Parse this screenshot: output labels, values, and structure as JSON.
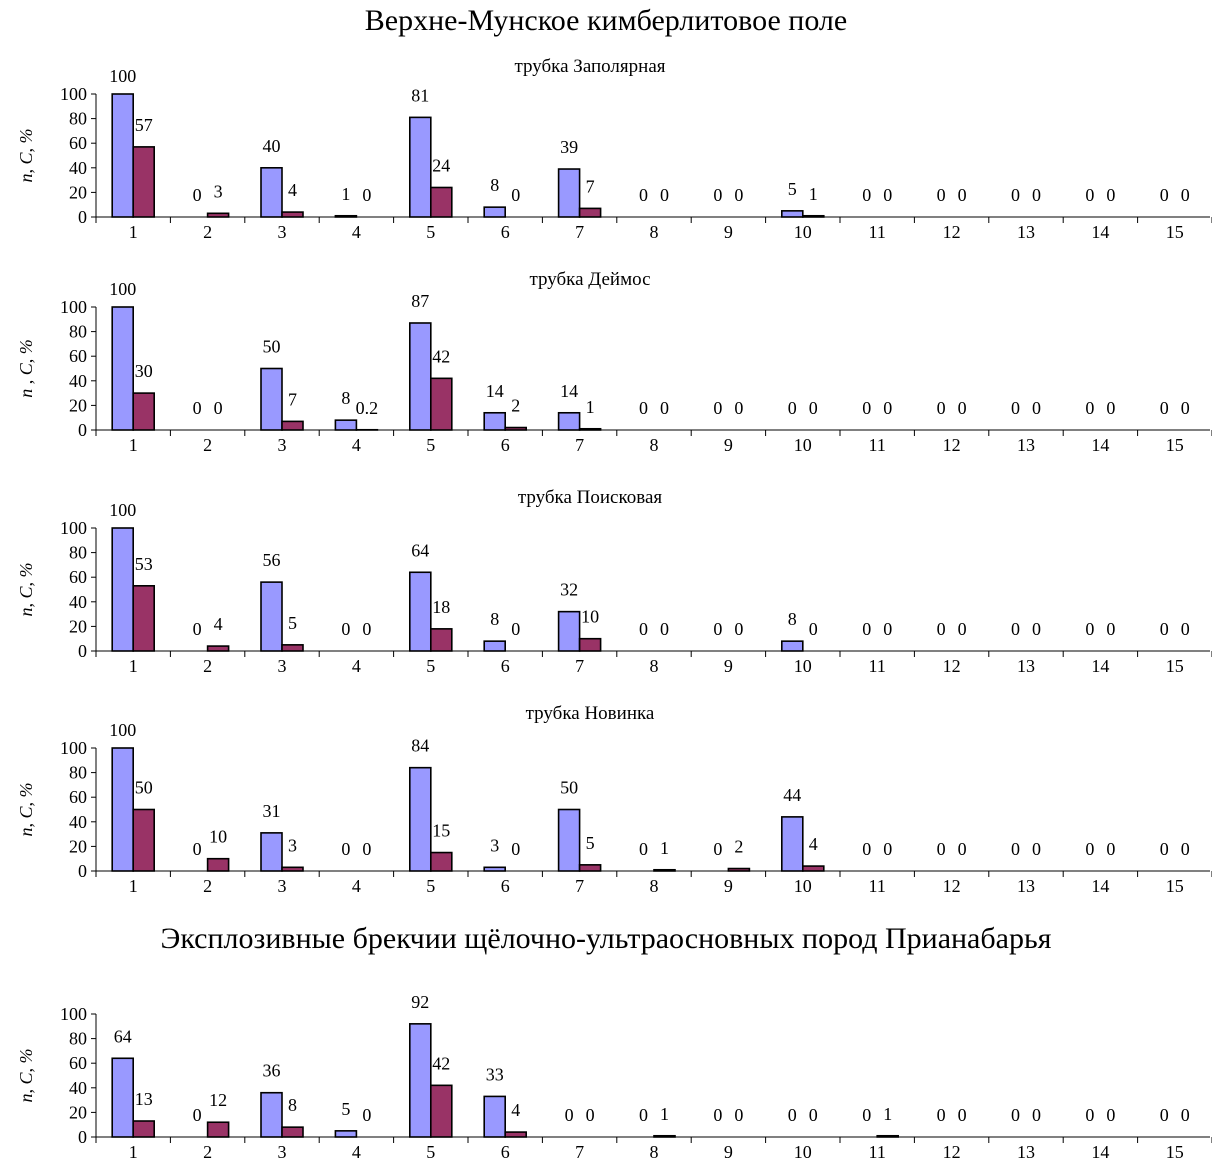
{
  "titles": {
    "main": "Верхне-Мунское кимберлитовое поле",
    "secondary": "Эксплозивные брекчии щёлочно-ультраосновных пород Прианабарья"
  },
  "colors": {
    "series_n": "#9999ff",
    "series_c": "#993366",
    "outline": "#000000"
  },
  "chart_data": [
    {
      "type": "bar",
      "title": "трубка Заполярная",
      "ylabel": "n, C, %",
      "ylim": [
        0,
        100
      ],
      "yticks": [
        0,
        20,
        40,
        60,
        80,
        100
      ],
      "categories": [
        "1",
        "2",
        "3",
        "4",
        "5",
        "6",
        "7",
        "8",
        "9",
        "10",
        "11",
        "12",
        "13",
        "14",
        "15"
      ],
      "series": [
        {
          "values": [
            100,
            0,
            40,
            1,
            81,
            8,
            39,
            0,
            0,
            5,
            0,
            0,
            0,
            0,
            0
          ]
        },
        {
          "values": [
            57,
            3,
            4,
            0,
            24,
            0,
            7,
            0,
            0,
            1,
            0,
            0,
            0,
            0,
            0
          ]
        }
      ]
    },
    {
      "type": "bar",
      "title": "трубка Деймос",
      "ylabel": "n , C, %",
      "ylim": [
        0,
        100
      ],
      "yticks": [
        0,
        20,
        40,
        60,
        80,
        100
      ],
      "categories": [
        "1",
        "2",
        "3",
        "4",
        "5",
        "6",
        "7",
        "8",
        "9",
        "10",
        "11",
        "12",
        "13",
        "14",
        "15"
      ],
      "series": [
        {
          "values": [
            100,
            0,
            50,
            8,
            87,
            14,
            14,
            0,
            0,
            0,
            0,
            0,
            0,
            0,
            0
          ]
        },
        {
          "values": [
            30,
            0,
            7,
            0.2,
            42,
            2,
            1,
            0,
            0,
            0,
            0,
            0,
            0,
            0,
            0
          ]
        }
      ]
    },
    {
      "type": "bar",
      "title": "трубка Поисковая",
      "ylabel": "n, C, %",
      "ylim": [
        0,
        100
      ],
      "yticks": [
        0,
        20,
        40,
        60,
        80,
        100
      ],
      "categories": [
        "1",
        "2",
        "3",
        "4",
        "5",
        "6",
        "7",
        "8",
        "9",
        "10",
        "11",
        "12",
        "13",
        "14",
        "15"
      ],
      "series": [
        {
          "values": [
            100,
            0,
            56,
            0,
            64,
            8,
            32,
            0,
            0,
            8,
            0,
            0,
            0,
            0,
            0
          ]
        },
        {
          "values": [
            53,
            4,
            5,
            0,
            18,
            0,
            10,
            0,
            0,
            0,
            0,
            0,
            0,
            0,
            0
          ]
        }
      ]
    },
    {
      "type": "bar",
      "title": "трубка Новинка",
      "ylabel": "n, C, %",
      "ylim": [
        0,
        100
      ],
      "yticks": [
        0,
        20,
        40,
        60,
        80,
        100
      ],
      "categories": [
        "1",
        "2",
        "3",
        "4",
        "5",
        "6",
        "7",
        "8",
        "9",
        "10",
        "11",
        "12",
        "13",
        "14",
        "15"
      ],
      "series": [
        {
          "values": [
            100,
            0,
            31,
            0,
            84,
            3,
            50,
            0,
            0,
            44,
            0,
            0,
            0,
            0,
            0
          ]
        },
        {
          "values": [
            50,
            10,
            3,
            0,
            15,
            0,
            5,
            1,
            2,
            4,
            0,
            0,
            0,
            0,
            0
          ]
        }
      ]
    },
    {
      "type": "bar",
      "title": "",
      "ylabel": "n, C, %",
      "ylim": [
        0,
        100
      ],
      "yticks": [
        0,
        20,
        40,
        60,
        80,
        100
      ],
      "categories": [
        "1",
        "2",
        "3",
        "4",
        "5",
        "6",
        "7",
        "8",
        "9",
        "10",
        "11",
        "12",
        "13",
        "14",
        "15"
      ],
      "series": [
        {
          "values": [
            64,
            0,
            36,
            5,
            92,
            33,
            0,
            0,
            0,
            0,
            0,
            0,
            0,
            0,
            0
          ]
        },
        {
          "values": [
            13,
            12,
            8,
            0,
            42,
            4,
            0,
            1,
            0,
            0,
            1,
            0,
            0,
            0,
            0
          ]
        }
      ]
    }
  ]
}
